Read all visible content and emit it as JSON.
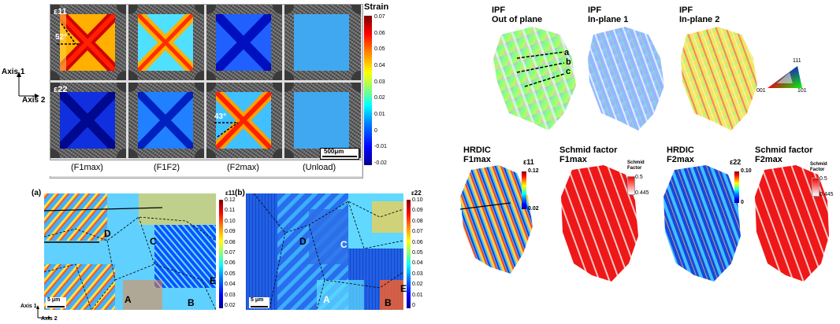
{
  "top_left": {
    "axis1": "Axis 1",
    "axis2": "Axis 2",
    "row_labels": [
      "ε11",
      "ε22"
    ],
    "angle_top": "52°",
    "angle_bottom": "43°",
    "scalebar": "500μm",
    "columns": [
      "(F1max)",
      "(F1F2)",
      "(F2max)",
      "(Unload)"
    ],
    "colorbar_title": "Strain",
    "colorbar_ticks": [
      "0.07",
      "0.06",
      "0.05",
      "0.04",
      "0.03",
      "0.02",
      "0.01",
      "0",
      "-0.01",
      "-0.02"
    ]
  },
  "panel_a": {
    "label": "(a)",
    "cb_title": "ε11",
    "cb_ticks": [
      "0.12",
      "0.11",
      "0.10",
      "0.09",
      "0.08",
      "0.07",
      "0.06",
      "0.05",
      "0.04",
      "0.03",
      "0.02"
    ],
    "grains": [
      "D",
      "C",
      "E",
      "A",
      "B"
    ],
    "scale": "5 μm",
    "axis1": "Axis 1",
    "axis2": "Axis 2"
  },
  "panel_b": {
    "label": "(b)",
    "cb_title": "ε22",
    "cb_ticks": [
      "0.10",
      "0.09",
      "0.08",
      "0.07",
      "0.06",
      "0.05",
      "0.04",
      "0.03",
      "0.02",
      "0.01",
      "0"
    ],
    "grains": [
      "D",
      "C",
      "E",
      "A",
      "B"
    ],
    "scale": "5 μm"
  },
  "ipf": {
    "titles": [
      {
        "l1": "IPF",
        "l2": "Out of plane"
      },
      {
        "l1": "IPF",
        "l2": "In-plane 1"
      },
      {
        "l1": "IPF",
        "l2": "In-plane 2"
      }
    ],
    "markers": [
      "a",
      "b",
      "c"
    ],
    "triangle": {
      "top": "111",
      "left": "001",
      "right": "101"
    }
  },
  "bottom_right": {
    "titles": [
      {
        "l1": "HRDIC",
        "l2": "F1max"
      },
      {
        "l1": "Schmid factor",
        "l2": "F1max"
      },
      {
        "l1": "HRDIC",
        "l2": "F2max"
      },
      {
        "l1": "Schmid factor",
        "l2": "F2max"
      }
    ],
    "cb1": {
      "title": "ε11",
      "max": "0.12",
      "min": "0.02"
    },
    "cb2": {
      "title": "Schmid Factor",
      "max": "0.5",
      "min": "0.445"
    },
    "cb3": {
      "title": "ε22",
      "max": "0.10",
      "min": "0"
    },
    "cb4": {
      "title": "Schmid Factor",
      "max": "0.5",
      "min": "0.445"
    }
  }
}
